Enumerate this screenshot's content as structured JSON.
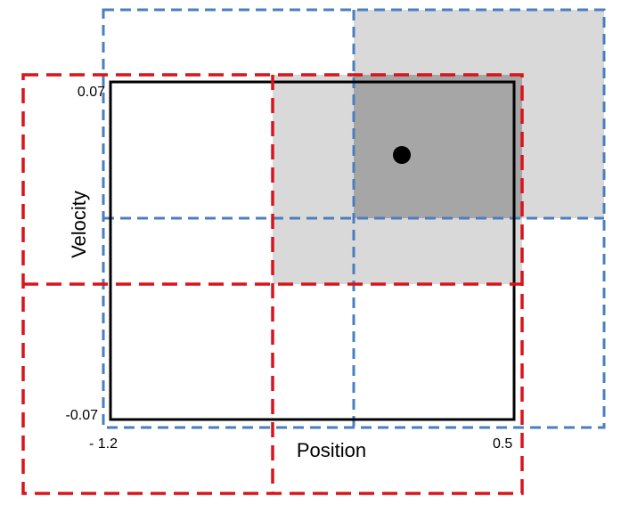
{
  "diagram": {
    "axes": {
      "x_label": "Position",
      "y_label": "Velocity",
      "x_min_label": "- 1.2",
      "x_max_label": "0.5",
      "y_max_label": "0.07",
      "y_min_label": "-0.07"
    },
    "colors": {
      "state_box": "#000000",
      "red_tiling": "#d9141b",
      "blue_tiling": "#4a7fbf",
      "active_light": "#d9d9d9",
      "active_overlap": "#a6a6a6",
      "state_point": "#000000"
    },
    "tilings": [
      {
        "name": "red-tiling",
        "grid": "2x2",
        "active_tile": "top-right"
      },
      {
        "name": "blue-tiling",
        "grid": "2x2",
        "active_tile": "top-right"
      }
    ]
  }
}
